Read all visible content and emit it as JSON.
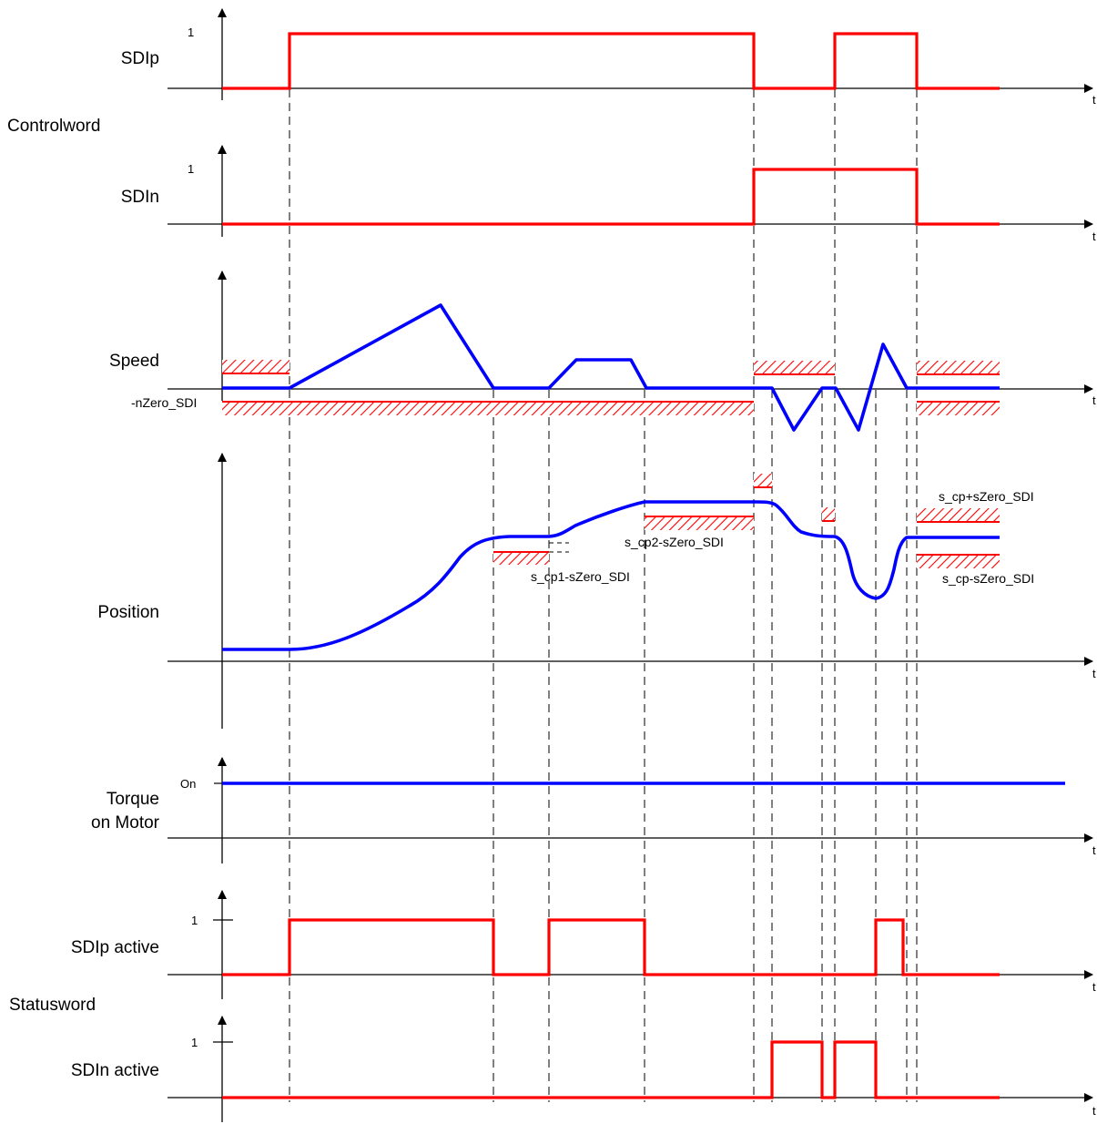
{
  "section_labels": {
    "controlword": "Controlword",
    "statusword": "Statusword"
  },
  "signals": {
    "sdip": {
      "label": "SDIp",
      "tick": "1"
    },
    "sdin": {
      "label": "SDIn",
      "tick": "1"
    },
    "speed": {
      "label": "Speed",
      "threshold_label": "-nZero_SDI"
    },
    "position": {
      "label": "Position",
      "annotations": {
        "cp1": "s_cp1-sZero_SDI",
        "cp2": "s_cp2-sZero_SDI",
        "cp_plus": "s_cp+sZero_SDI",
        "cp_minus": "s_cp-sZero_SDI"
      }
    },
    "torque": {
      "label_line1": "Torque",
      "label_line2": "on Motor",
      "tick": "On"
    },
    "sdip_active": {
      "label": "SDIp active",
      "tick": "1"
    },
    "sdin_active": {
      "label": "SDIn active",
      "tick": "1"
    }
  },
  "axis_label": "t",
  "colors": {
    "signal_bool": "#ff0000",
    "signal_analog": "#0000ff",
    "tolerance_hatch": "#ff0000"
  }
}
